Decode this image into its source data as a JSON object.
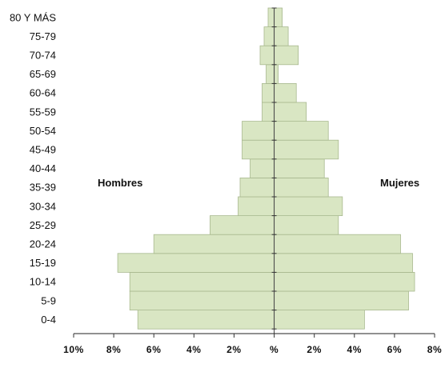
{
  "chart_data": {
    "type": "bar",
    "orientation": "horizontal-population-pyramid",
    "title": "",
    "categories": [
      "0-4",
      "5-9",
      "10-14",
      "15-19",
      "20-24",
      "25-29",
      "30-34",
      "35-39",
      "40-44",
      "45-49",
      "50-54",
      "55-59",
      "60-64",
      "65-69",
      "70-74",
      "75-79",
      "80 Y MÁS"
    ],
    "series": [
      {
        "name": "Hombres",
        "side": "left",
        "values": [
          6.8,
          7.2,
          7.2,
          7.8,
          6.0,
          3.2,
          1.8,
          1.7,
          1.2,
          1.6,
          1.6,
          0.6,
          0.6,
          0.4,
          0.7,
          0.5,
          0.3
        ]
      },
      {
        "name": "Mujeres",
        "side": "right",
        "values": [
          4.5,
          6.7,
          7.0,
          6.9,
          6.3,
          3.2,
          3.4,
          2.7,
          2.5,
          3.2,
          2.7,
          1.6,
          1.1,
          0.2,
          1.2,
          0.7,
          0.4
        ]
      }
    ],
    "xlim": [
      -10,
      8
    ],
    "xticks": [
      -10,
      -8,
      -6,
      -4,
      -2,
      0,
      2,
      4,
      6,
      8
    ],
    "xtick_labels": [
      "10%",
      "8%",
      "6%",
      "4%",
      "2%",
      "%",
      "2%",
      "4%",
      "6%",
      "8%"
    ],
    "bar_color": "#d9e6c3",
    "bar_edge_color": "#a8b98f",
    "grid": false,
    "legend": "none"
  }
}
